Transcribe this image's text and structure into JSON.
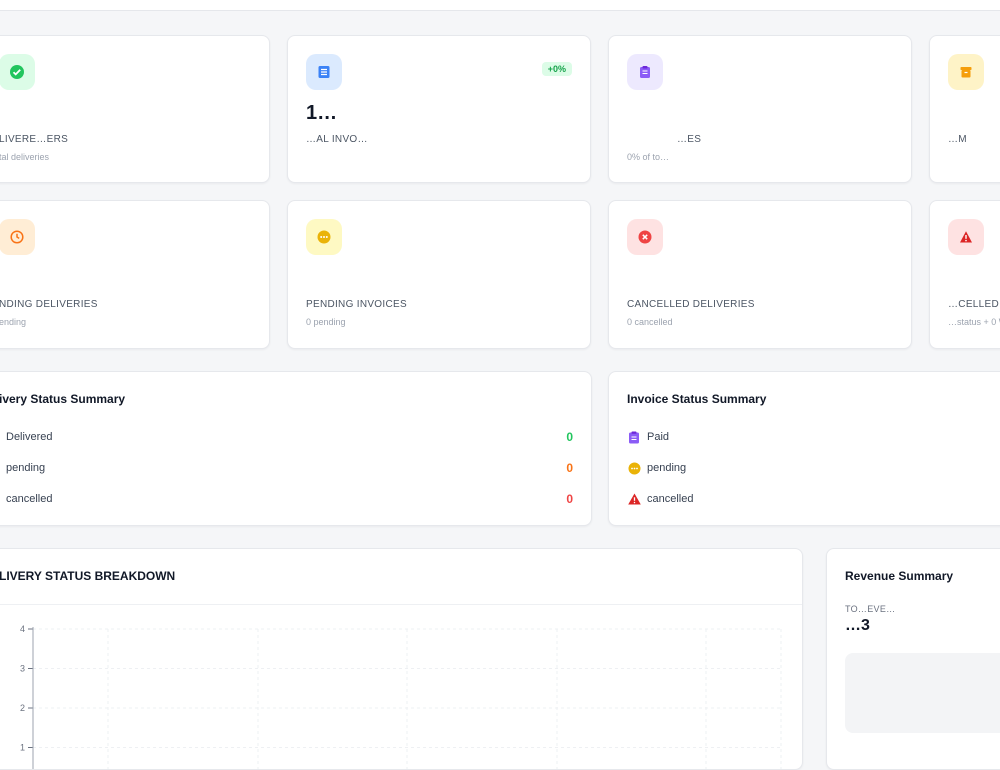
{
  "stats_row1": [
    {
      "value": "",
      "label": "LIVERE…ERS",
      "sub": "tal deliveries",
      "icon": "check-icon",
      "color": "#22c55e",
      "bg": "#dcfce7"
    },
    {
      "value": "1…",
      "label": "…AL INVO…",
      "sub": "",
      "icon": "invoice-icon",
      "color": "#3b82f6",
      "bg": "#dbeafe",
      "badge": "+0%"
    },
    {
      "value": "",
      "label": "…ES",
      "sub": "0% of to…",
      "icon": "clipboard-icon",
      "color": "#8b5cf6",
      "bg": "#ede9fe"
    },
    {
      "value": "",
      "label": "…M",
      "sub": "",
      "icon": "archive-icon",
      "color": "#f59e0b",
      "bg": "#fef3c7"
    }
  ],
  "stats_row2": [
    {
      "value": "",
      "label": "NDING DELIVERIES",
      "sub": "ending",
      "icon": "clock-icon",
      "color": "#f97316",
      "bg": "#ffedd5"
    },
    {
      "value": "",
      "label": "PENDING INVOICES",
      "sub": "0 pending",
      "icon": "dots-icon",
      "color": "#eab308",
      "bg": "#fef9c3"
    },
    {
      "value": "",
      "label": "CANCELLED DELIVERIES",
      "sub": "0 cancelled",
      "icon": "x-circle-icon",
      "color": "#ef4444",
      "bg": "#fee2e2"
    },
    {
      "value": "",
      "label": "…CELLED",
      "sub": "…status + 0 W",
      "icon": "warning-icon",
      "color": "#dc2626",
      "bg": "#fee2e2"
    }
  ],
  "delivery_summary": {
    "title": "ivery Status Summary",
    "rows": [
      {
        "label": "Delivered",
        "count": "0",
        "color": "#22c55e"
      },
      {
        "label": "pending",
        "count": "0",
        "color": "#f97316"
      },
      {
        "label": "cancelled",
        "count": "0",
        "color": "#ef4444"
      }
    ]
  },
  "invoice_summary": {
    "title": "Invoice Status Summary",
    "rows": [
      {
        "label": "Paid",
        "icon": "clipboard-icon",
        "color": "#8b5cf6"
      },
      {
        "label": "pending",
        "icon": "dots-icon",
        "color": "#eab308"
      },
      {
        "label": "cancelled",
        "icon": "warning-icon",
        "color": "#dc2626"
      }
    ]
  },
  "chart": {
    "title": "LIVERY STATUS BREAKDOWN",
    "yticks": [
      "4",
      "3",
      "2",
      "1"
    ]
  },
  "chart_data": {
    "type": "bar",
    "title": "LIVERY STATUS BREAKDOWN",
    "xlabel": "",
    "ylabel": "",
    "ylim": [
      0,
      4
    ],
    "categories": [],
    "values": [],
    "grid": true
  },
  "revenue": {
    "title": "Revenue Summary",
    "label": "TO…EVE…",
    "value": "…3"
  }
}
